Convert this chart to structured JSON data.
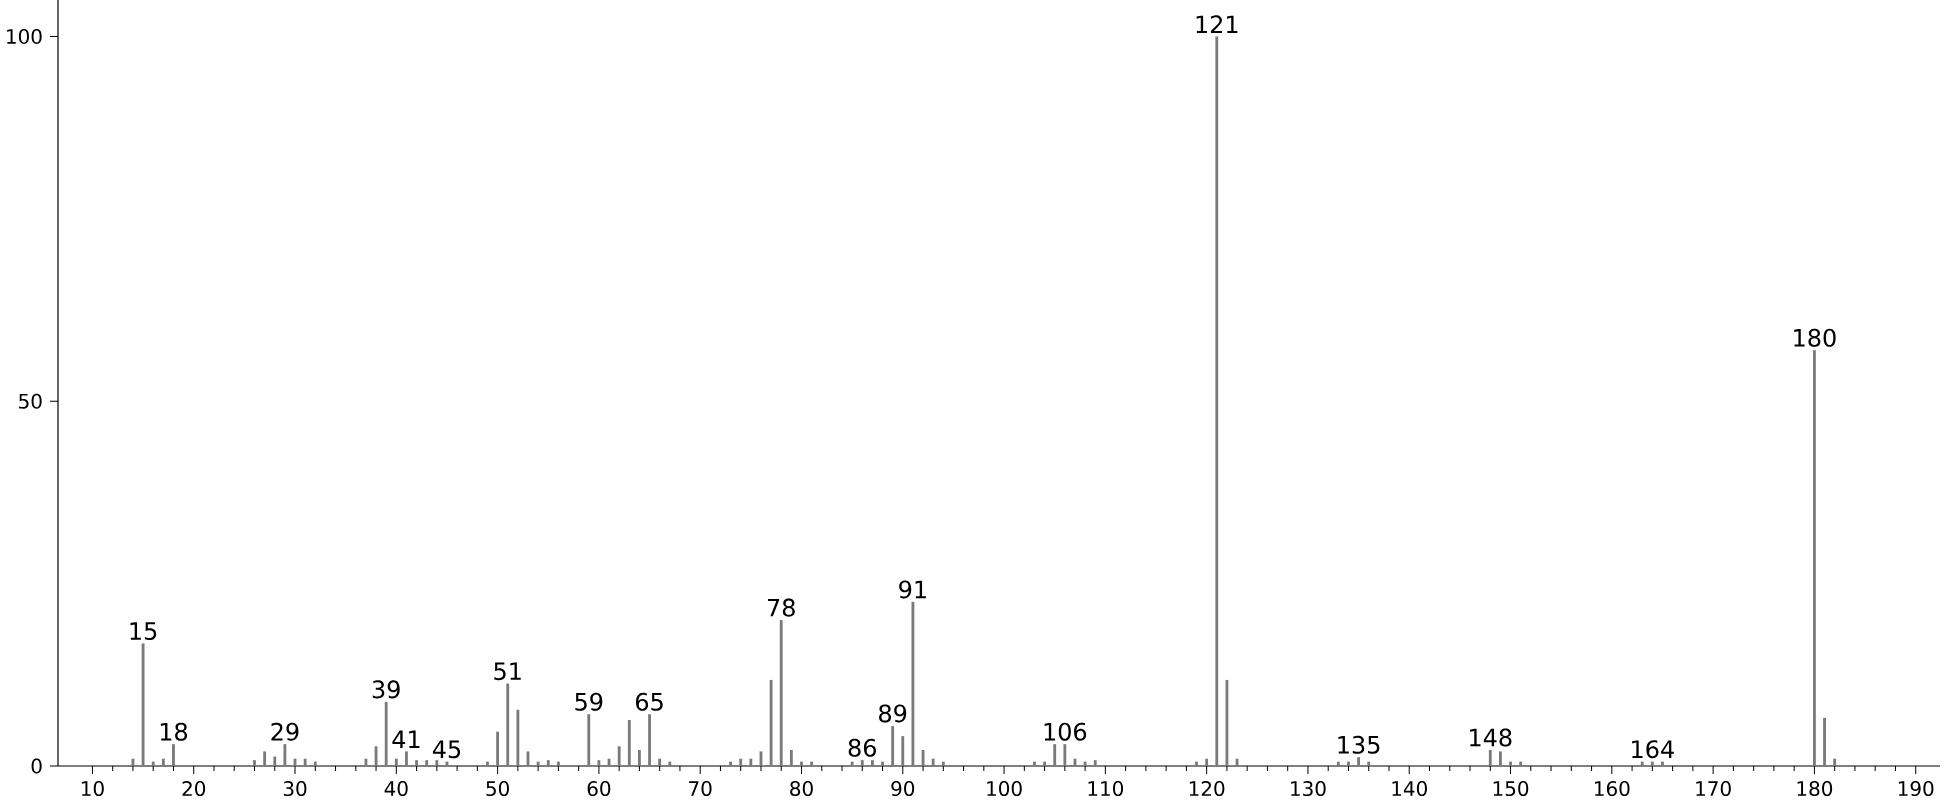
{
  "chart_data": {
    "type": "bar",
    "color": "#7a7a7a",
    "x": [
      14,
      15,
      16,
      17,
      18,
      26,
      27,
      28,
      29,
      30,
      31,
      32,
      37,
      38,
      39,
      40,
      41,
      42,
      43,
      44,
      45,
      49,
      50,
      51,
      52,
      53,
      54,
      55,
      56,
      59,
      60,
      61,
      62,
      63,
      64,
      65,
      66,
      67,
      73,
      74,
      75,
      76,
      77,
      78,
      79,
      80,
      81,
      85,
      86,
      87,
      88,
      89,
      90,
      91,
      92,
      93,
      94,
      103,
      104,
      105,
      106,
      107,
      108,
      109,
      119,
      120,
      121,
      122,
      123,
      133,
      134,
      135,
      136,
      148,
      149,
      150,
      151,
      163,
      164,
      165,
      180,
      181,
      182
    ],
    "values": [
      1,
      16.8,
      0.6,
      1,
      3,
      0.8,
      2,
      1.3,
      3,
      1,
      1,
      0.6,
      1,
      2.7,
      8.8,
      1,
      2,
      0.8,
      0.8,
      0.8,
      0.6,
      0.6,
      4.7,
      11.3,
      7.7,
      2,
      0.6,
      0.8,
      0.6,
      7.1,
      0.8,
      1,
      2.7,
      6.3,
      2.2,
      7.1,
      1,
      0.6,
      0.6,
      1,
      1,
      2,
      11.8,
      20,
      2.2,
      0.6,
      0.6,
      0.6,
      0.8,
      0.8,
      0.6,
      5.5,
      4.1,
      22.5,
      2.2,
      1,
      0.6,
      0.6,
      0.6,
      3,
      3,
      1,
      0.6,
      0.8,
      0.6,
      1,
      100,
      11.8,
      1,
      0.6,
      0.6,
      1.2,
      0.6,
      2.2,
      2,
      0.6,
      0.6,
      0.6,
      0.6,
      0.6,
      57,
      6.6,
      1
    ],
    "xlim": [
      6.6,
      192.4
    ],
    "ylim": [
      0,
      105
    ],
    "xticks": [
      10,
      20,
      30,
      40,
      50,
      60,
      70,
      80,
      90,
      100,
      110,
      120,
      130,
      140,
      150,
      160,
      170,
      180,
      190
    ],
    "yticks": [
      0,
      50,
      100
    ],
    "grid": false,
    "annotations": [
      {
        "text": "15",
        "x": 15,
        "y": 16.8
      },
      {
        "text": "18",
        "x": 18,
        "y": 3
      },
      {
        "text": "29",
        "x": 29,
        "y": 3
      },
      {
        "text": "39",
        "x": 39,
        "y": 8.8
      },
      {
        "text": "41",
        "x": 41,
        "y": 2
      },
      {
        "text": "45",
        "x": 45,
        "y": 0.6
      },
      {
        "text": "51",
        "x": 51,
        "y": 11.3
      },
      {
        "text": "59",
        "x": 59,
        "y": 7.1
      },
      {
        "text": "65",
        "x": 65,
        "y": 7.1
      },
      {
        "text": "78",
        "x": 78,
        "y": 20
      },
      {
        "text": "86",
        "x": 86,
        "y": 0.8
      },
      {
        "text": "89",
        "x": 89,
        "y": 5.5
      },
      {
        "text": "91",
        "x": 91,
        "y": 22.5
      },
      {
        "text": "106",
        "x": 106,
        "y": 3
      },
      {
        "text": "121",
        "x": 121,
        "y": 100
      },
      {
        "text": "135",
        "x": 135,
        "y": 1.2
      },
      {
        "text": "148",
        "x": 148,
        "y": 2.2
      },
      {
        "text": "164",
        "x": 164,
        "y": 0.6
      },
      {
        "text": "180",
        "x": 180,
        "y": 57
      }
    ]
  }
}
